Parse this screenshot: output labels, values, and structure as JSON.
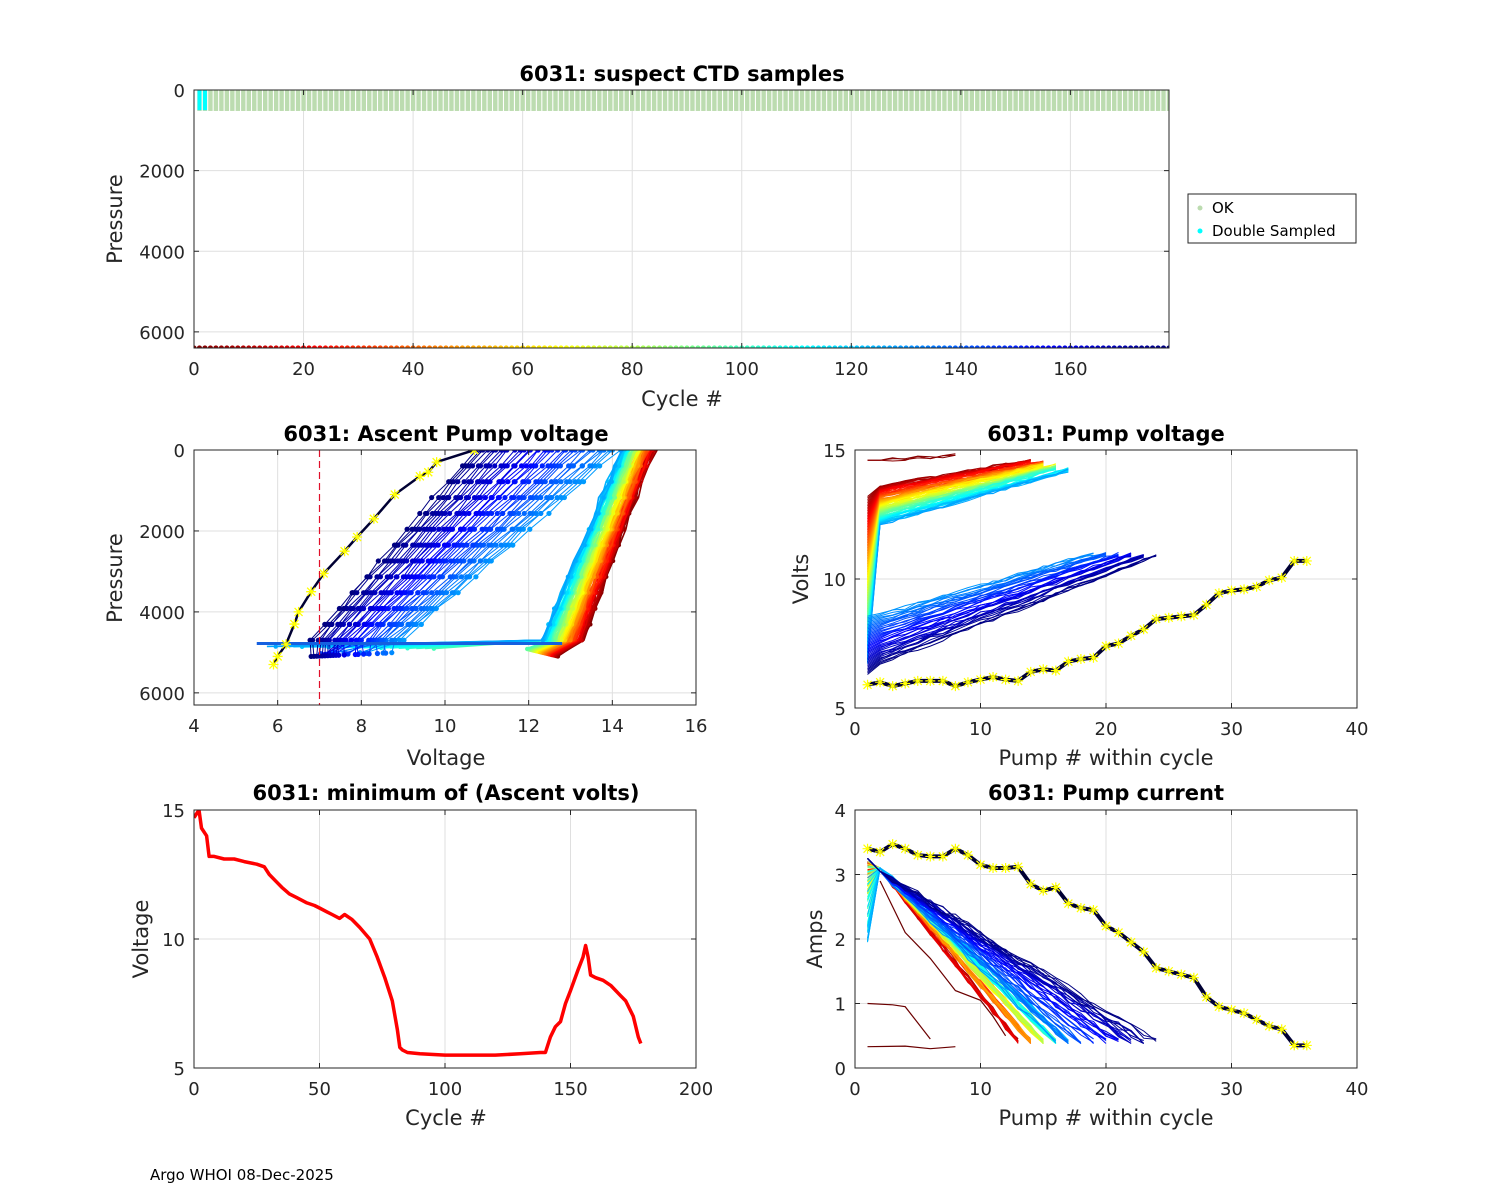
{
  "footer": "Argo WHOI 08-Dec-2025",
  "chart_data": [
    {
      "id": "suspect",
      "type": "scatter",
      "title": "6031: suspect CTD samples",
      "xlabel": "Cycle #",
      "ylabel": "Pressure",
      "xlim": [
        0,
        178
      ],
      "ylim": [
        0,
        6400
      ],
      "y_reversed": true,
      "xticks": [
        0,
        20,
        40,
        60,
        80,
        100,
        120,
        140,
        160
      ],
      "yticks": [
        0,
        2000,
        4000,
        6000
      ],
      "grid": true,
      "legend": {
        "placement": "outside-right",
        "entries": [
          {
            "label": "OK",
            "color": "#bcdcb0"
          },
          {
            "label": "Double Sampled",
            "color": "#00ffff"
          }
        ]
      },
      "series": [
        {
          "name": "OK",
          "color": "#bcdcb0",
          "cycles_range": [
            1,
            178
          ],
          "pressure_range": [
            0,
            500
          ]
        },
        {
          "name": "Double Sampled",
          "color": "#00ffff",
          "cycles": [
            1,
            2
          ],
          "pressure_range": [
            0,
            500
          ]
        },
        {
          "name": "Cycle markers (colored by cycle, jet colormap reversed)",
          "cycles_range": [
            0,
            178
          ],
          "pressure": 6400
        }
      ]
    },
    {
      "id": "ascent-pump-voltage",
      "type": "line",
      "title": "6031: Ascent Pump voltage",
      "xlabel": "Voltage",
      "ylabel": "Pressure",
      "xlim": [
        4,
        16
      ],
      "ylim": [
        0,
        6300
      ],
      "y_reversed": true,
      "xticks": [
        4,
        6,
        8,
        10,
        12,
        14,
        16
      ],
      "yticks": [
        0,
        2000,
        4000,
        6000
      ],
      "grid": true,
      "reference_line": {
        "x": 7,
        "style": "dashed",
        "color": "#e0102a"
      },
      "series_summary": [
        {
          "name": "early cycles (red)",
          "voltage_at_surface": 15.0,
          "voltage_at_depth": 13.2,
          "depth": 5100
        },
        {
          "name": "mid cycles (green/cyan)",
          "voltage_at_surface": 14.6,
          "voltage_at_depth": 12.6,
          "depth": 4900
        },
        {
          "name": "late cycles (blue)",
          "voltage_at_surface": 14.2,
          "voltage_at_depth": 5.5,
          "depth": 4800
        },
        {
          "name": "latest cycles (navy)",
          "voltage_at_surface": 10.8,
          "voltage_at_depth": 6.8,
          "depth": 5050
        },
        {
          "name": "last cycle (yellow stars)",
          "points": [
            [
              10.7,
              0
            ],
            [
              9.8,
              300
            ],
            [
              9.6,
              550
            ],
            [
              9.4,
              650
            ],
            [
              8.8,
              1100
            ],
            [
              8.3,
              1700
            ],
            [
              7.9,
              2150
            ],
            [
              7.6,
              2500
            ],
            [
              7.1,
              3050
            ],
            [
              6.8,
              3500
            ],
            [
              6.5,
              4000
            ],
            [
              6.4,
              4300
            ],
            [
              6.2,
              4800
            ],
            [
              6.0,
              5100
            ],
            [
              5.9,
              5300
            ]
          ]
        }
      ]
    },
    {
      "id": "pump-voltage",
      "type": "line",
      "title": "6031: Pump voltage",
      "xlabel": "Pump # within cycle",
      "ylabel": "Volts",
      "xlim": [
        0,
        40
      ],
      "ylim": [
        5,
        15
      ],
      "xticks": [
        0,
        10,
        20,
        30,
        40
      ],
      "yticks": [
        5,
        10,
        15
      ],
      "grid": true,
      "highlighted_series": {
        "name": "last cycle (yellow stars)",
        "x": [
          1,
          2,
          3,
          4,
          5,
          6,
          7,
          8,
          9,
          10,
          11,
          12,
          13,
          14,
          15,
          16,
          17,
          18,
          19,
          20,
          21,
          22,
          23,
          24,
          25,
          26,
          27,
          28,
          29,
          30,
          31,
          32,
          33,
          34,
          35,
          36
        ],
        "y": [
          5.9,
          6.0,
          5.85,
          5.95,
          6.05,
          6.05,
          6.05,
          5.85,
          6.0,
          6.1,
          6.2,
          6.1,
          6.05,
          6.4,
          6.5,
          6.45,
          6.8,
          6.9,
          6.95,
          7.4,
          7.5,
          7.8,
          8.05,
          8.45,
          8.5,
          8.55,
          8.6,
          9.0,
          9.45,
          9.55,
          9.6,
          9.7,
          9.95,
          10.05,
          10.7,
          10.7
        ]
      },
      "series_summary": [
        {
          "name": "early cycles (red)",
          "start": [
            1,
            13.0
          ],
          "end": [
            14,
            14.5
          ]
        },
        {
          "name": "mid cycles (green)",
          "start": [
            1,
            11.0
          ],
          "end": [
            16,
            14.2
          ]
        },
        {
          "name": "late cycles (blue)",
          "start": [
            1,
            8.5
          ],
          "end": [
            19,
            11.0
          ]
        },
        {
          "name": "latest cycles (navy)",
          "start": [
            1,
            6.5
          ],
          "end": [
            24,
            10.8
          ]
        }
      ]
    },
    {
      "id": "min-ascent-volts",
      "type": "line",
      "title": "6031: minimum of (Ascent volts)",
      "xlabel": "Cycle #",
      "ylabel": "Voltage",
      "xlim": [
        0,
        200
      ],
      "ylim": [
        5,
        15
      ],
      "xticks": [
        0,
        50,
        100,
        150,
        200
      ],
      "yticks": [
        5,
        10,
        15
      ],
      "grid": true,
      "color": "#ff0000",
      "x": [
        0,
        2,
        3,
        5,
        6,
        8,
        12,
        16,
        20,
        25,
        28,
        30,
        33,
        35,
        38,
        41,
        45,
        48,
        50,
        53,
        55,
        58,
        60,
        63,
        66,
        70,
        73,
        76,
        79,
        81,
        82,
        83,
        85,
        90,
        100,
        110,
        120,
        130,
        138,
        140,
        142,
        144,
        146,
        148,
        150,
        153,
        155,
        156,
        157,
        158,
        160,
        163,
        166,
        170,
        172,
        175,
        176,
        177,
        178
      ],
      "y": [
        14.7,
        15.0,
        14.3,
        14.0,
        13.2,
        13.2,
        13.1,
        13.1,
        13.0,
        12.9,
        12.8,
        12.5,
        12.2,
        12.0,
        11.75,
        11.6,
        11.4,
        11.3,
        11.2,
        11.05,
        10.95,
        10.8,
        10.95,
        10.75,
        10.45,
        10.0,
        9.3,
        8.5,
        7.6,
        6.5,
        5.8,
        5.7,
        5.6,
        5.55,
        5.5,
        5.5,
        5.5,
        5.55,
        5.6,
        5.6,
        6.2,
        6.6,
        6.8,
        7.5,
        8.0,
        8.8,
        9.3,
        9.75,
        9.3,
        8.6,
        8.5,
        8.4,
        8.2,
        7.8,
        7.6,
        7.0,
        6.6,
        6.2,
        5.95
      ]
    },
    {
      "id": "pump-current",
      "type": "line",
      "title": "6031: Pump current",
      "xlabel": "Pump # within cycle",
      "ylabel": "Amps",
      "xlim": [
        0,
        40
      ],
      "ylim": [
        0,
        4
      ],
      "xticks": [
        0,
        10,
        20,
        30,
        40
      ],
      "yticks": [
        0,
        1,
        2,
        3,
        4
      ],
      "grid": true,
      "highlighted_series": {
        "name": "last cycle (yellow stars)",
        "x": [
          1,
          2,
          3,
          4,
          5,
          6,
          7,
          8,
          9,
          10,
          11,
          12,
          13,
          14,
          15,
          16,
          17,
          18,
          19,
          20,
          21,
          22,
          23,
          24,
          25,
          26,
          27,
          28,
          29,
          30,
          31,
          32,
          33,
          34,
          35,
          36
        ],
        "y": [
          3.4,
          3.35,
          3.47,
          3.4,
          3.3,
          3.28,
          3.28,
          3.4,
          3.3,
          3.15,
          3.1,
          3.1,
          3.12,
          2.85,
          2.75,
          2.8,
          2.55,
          2.48,
          2.45,
          2.2,
          2.1,
          1.95,
          1.8,
          1.55,
          1.5,
          1.45,
          1.4,
          1.1,
          0.95,
          0.9,
          0.85,
          0.75,
          0.65,
          0.6,
          0.35,
          0.35
        ]
      },
      "series_summary": [
        {
          "name": "early cycles (red/orange)",
          "start": [
            1,
            3.2
          ],
          "end": [
            14,
            0.4
          ]
        },
        {
          "name": "mid cycles (cyan)",
          "start": [
            1,
            3.2
          ],
          "end": [
            17,
            0.4
          ]
        },
        {
          "name": "late cycles (navy)",
          "start": [
            1,
            3.2
          ],
          "end": [
            24,
            0.35
          ]
        },
        {
          "name": "first cycles (dark red)",
          "start": [
            1,
            1.0
          ],
          "end": [
            8,
            0.33
          ]
        }
      ]
    }
  ]
}
